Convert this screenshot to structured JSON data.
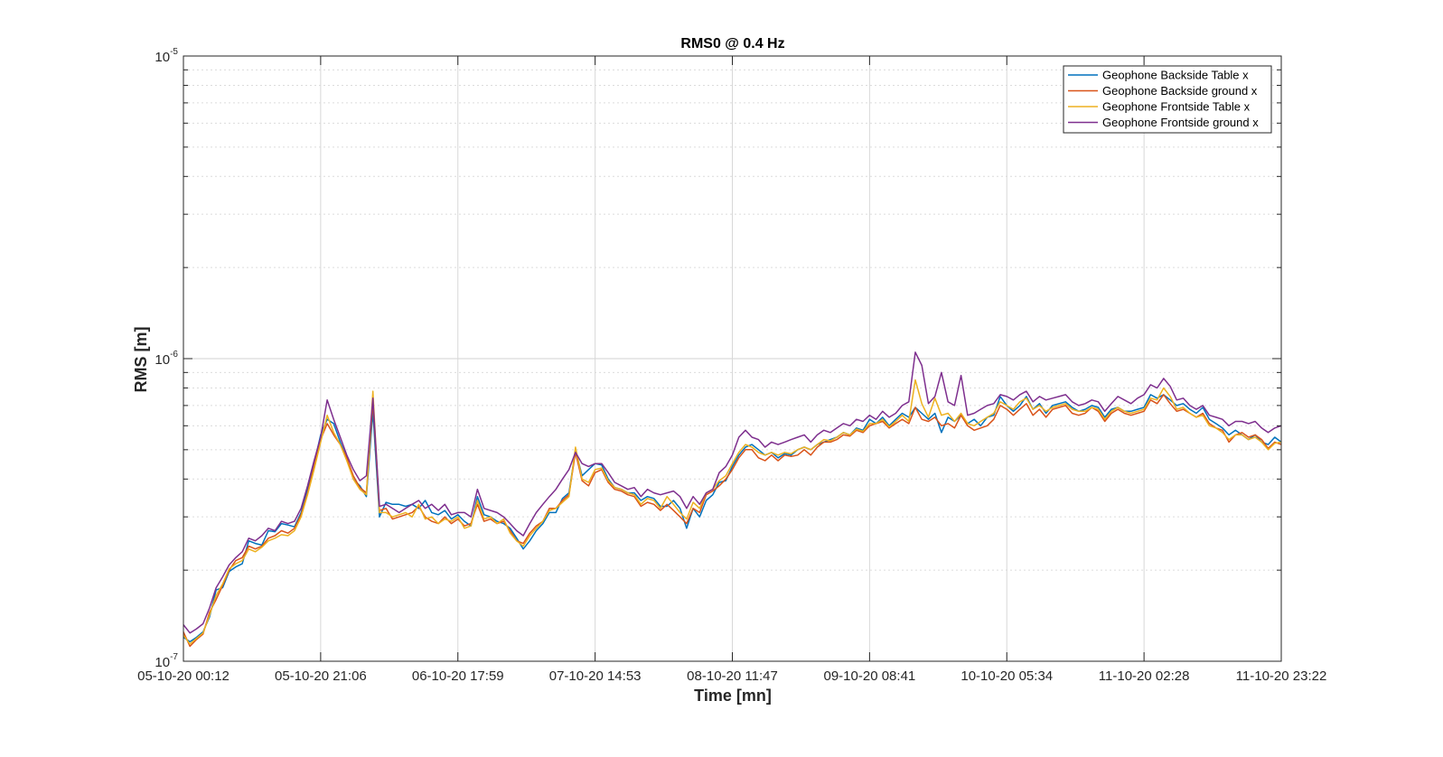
{
  "chart_data": {
    "type": "line",
    "title": "RMS0 @ 0.4 Hz",
    "xlabel": "Time [mn]",
    "ylabel": "RMS [m]",
    "yscale": "log",
    "ylim": [
      1e-07,
      1e-05
    ],
    "yticks": [
      {
        "value": 1e-07,
        "base": "10",
        "exp": "-7"
      },
      {
        "value": 1e-06,
        "base": "10",
        "exp": "-6"
      },
      {
        "value": 1e-05,
        "base": "10",
        "exp": "-5"
      }
    ],
    "xlim": [
      "05-10-20 00:12",
      "11-10-20 23:22"
    ],
    "xticks": [
      "05-10-20 00:12",
      "05-10-20 21:06",
      "06-10-20 17:59",
      "07-10-20 14:53",
      "08-10-20 11:47",
      "09-10-20 08:41",
      "10-10-20 05:34",
      "11-10-20 02:28",
      "11-10-20 23:22"
    ],
    "grid": true,
    "legend_position": "top-right",
    "x_start": "05-10-20 00:12",
    "x_step_hours": 1,
    "series": [
      {
        "name": "Geophone Backside Table x",
        "color": "#0072BD",
        "values": [
          1.2e-07,
          1.16e-07,
          1.2e-07,
          1.25e-07,
          1.4e-07,
          1.72e-07,
          1.75e-07,
          1.98e-07,
          2.05e-07,
          2.1e-07,
          2.5e-07,
          2.45e-07,
          2.42e-07,
          2.7e-07,
          2.68e-07,
          2.85e-07,
          2.82e-07,
          2.78e-07,
          3.1e-07,
          3.7e-07,
          4.5e-07,
          5.6e-07,
          6.3e-07,
          6.1e-07,
          5.3e-07,
          4.7e-07,
          4e-07,
          3.8e-07,
          3.5e-07,
          6.7e-07,
          3e-07,
          3.35e-07,
          3.3e-07,
          3.3e-07,
          3.25e-07,
          3.3e-07,
          3.2e-07,
          3.4e-07,
          3.1e-07,
          3.05e-07,
          3.15e-07,
          2.95e-07,
          3.05e-07,
          2.9e-07,
          2.8e-07,
          3.5e-07,
          3.05e-07,
          3e-07,
          2.9e-07,
          2.85e-07,
          2.75e-07,
          2.55e-07,
          2.35e-07,
          2.5e-07,
          2.7e-07,
          2.85e-07,
          3.1e-07,
          3.1e-07,
          3.45e-07,
          3.6e-07,
          5e-07,
          4.1e-07,
          4.3e-07,
          4.5e-07,
          4.45e-07,
          4e-07,
          3.75e-07,
          3.7e-07,
          3.6e-07,
          3.6e-07,
          3.4e-07,
          3.5e-07,
          3.45e-07,
          3.25e-07,
          3.25e-07,
          3.4e-07,
          3.2e-07,
          2.75e-07,
          3.2e-07,
          3e-07,
          3.4e-07,
          3.55e-07,
          3.9e-07,
          3.95e-07,
          4.4e-07,
          4.8e-07,
          5.1e-07,
          5.2e-07,
          5e-07,
          4.8e-07,
          4.9e-07,
          4.7e-07,
          4.85e-07,
          4.8e-07,
          5e-07,
          5.1e-07,
          5e-07,
          5.2e-07,
          5.3e-07,
          5.4e-07,
          5.5e-07,
          5.7e-07,
          5.6e-07,
          5.9e-07,
          5.8e-07,
          6.3e-07,
          6.1e-07,
          6.4e-07,
          6e-07,
          6.3e-07,
          6.6e-07,
          6.4e-07,
          6.9e-07,
          6.6e-07,
          6.3e-07,
          6.6e-07,
          5.7e-07,
          6.4e-07,
          6.2e-07,
          6.5e-07,
          6.1e-07,
          6.3e-07,
          6e-07,
          6.4e-07,
          6.5e-07,
          7.5e-07,
          7e-07,
          6.7e-07,
          7e-07,
          7.5e-07,
          6.8e-07,
          7.1e-07,
          6.6e-07,
          7e-07,
          7.1e-07,
          7.2e-07,
          6.9e-07,
          6.7e-07,
          6.8e-07,
          7e-07,
          6.9e-07,
          6.4e-07,
          6.8e-07,
          6.9e-07,
          6.7e-07,
          6.7e-07,
          6.8e-07,
          6.9e-07,
          7.6e-07,
          7.4e-07,
          7.6e-07,
          7.3e-07,
          7e-07,
          7.1e-07,
          6.8e-07,
          6.6e-07,
          6.9e-07,
          6.3e-07,
          6.1e-07,
          5.9e-07,
          5.6e-07,
          5.8e-07,
          5.6e-07,
          5.4e-07,
          5.6e-07,
          5.3e-07,
          5.2e-07,
          5.5e-07,
          5.3e-07
        ]
      },
      {
        "name": "Geophone Backside ground x",
        "color": "#D95319",
        "values": [
          1.25e-07,
          1.12e-07,
          1.18e-07,
          1.23e-07,
          1.45e-07,
          1.6e-07,
          1.78e-07,
          2e-07,
          2.15e-07,
          2.2e-07,
          2.4e-07,
          2.35e-07,
          2.4e-07,
          2.55e-07,
          2.6e-07,
          2.7e-07,
          2.65e-07,
          2.75e-07,
          3.05e-07,
          3.6e-07,
          4.4e-07,
          5.4e-07,
          6.1e-07,
          5.6e-07,
          5.2e-07,
          4.7e-07,
          4.1e-07,
          3.75e-07,
          3.6e-07,
          7.2e-07,
          3.15e-07,
          3.2e-07,
          2.95e-07,
          3e-07,
          3.05e-07,
          3.1e-07,
          3.25e-07,
          3e-07,
          2.9e-07,
          2.85e-07,
          3e-07,
          2.85e-07,
          2.95e-07,
          2.8e-07,
          2.85e-07,
          3.3e-07,
          2.9e-07,
          2.95e-07,
          2.85e-07,
          2.9e-07,
          2.7e-07,
          2.5e-07,
          2.45e-07,
          2.65e-07,
          2.8e-07,
          2.9e-07,
          3.2e-07,
          3.2e-07,
          3.4e-07,
          3.55e-07,
          4.9e-07,
          3.95e-07,
          3.8e-07,
          4.2e-07,
          4.3e-07,
          3.9e-07,
          3.7e-07,
          3.65e-07,
          3.55e-07,
          3.5e-07,
          3.25e-07,
          3.35e-07,
          3.3e-07,
          3.15e-07,
          3.3e-07,
          3.15e-07,
          3e-07,
          2.85e-07,
          3.2e-07,
          3.1e-07,
          3.55e-07,
          3.65e-07,
          3.8e-07,
          4e-07,
          4.3e-07,
          4.7e-07,
          5e-07,
          5e-07,
          4.7e-07,
          4.6e-07,
          4.8e-07,
          4.6e-07,
          4.8e-07,
          4.75e-07,
          4.8e-07,
          5e-07,
          4.8e-07,
          5.1e-07,
          5.3e-07,
          5.3e-07,
          5.4e-07,
          5.6e-07,
          5.55e-07,
          5.8e-07,
          5.7e-07,
          6e-07,
          6.1e-07,
          6.2e-07,
          5.9e-07,
          6.1e-07,
          6.3e-07,
          6.1e-07,
          6.9e-07,
          6.3e-07,
          6.2e-07,
          6.4e-07,
          6e-07,
          6.1e-07,
          5.9e-07,
          6.5e-07,
          6e-07,
          5.8e-07,
          5.9e-07,
          6e-07,
          6.3e-07,
          7e-07,
          6.8e-07,
          6.5e-07,
          6.8e-07,
          7.1e-07,
          6.5e-07,
          6.8e-07,
          6.4e-07,
          6.8e-07,
          6.9e-07,
          7e-07,
          6.6e-07,
          6.5e-07,
          6.6e-07,
          6.9e-07,
          6.7e-07,
          6.2e-07,
          6.6e-07,
          6.8e-07,
          6.6e-07,
          6.5e-07,
          6.6e-07,
          6.7e-07,
          7.3e-07,
          7.1e-07,
          7.6e-07,
          7.1e-07,
          6.7e-07,
          6.8e-07,
          6.6e-07,
          6.4e-07,
          6.6e-07,
          6.1e-07,
          5.9e-07,
          5.8e-07,
          5.3e-07,
          5.6e-07,
          5.7e-07,
          5.5e-07,
          5.6e-07,
          5.4e-07,
          5.05e-07,
          5.3e-07,
          5.2e-07
        ]
      },
      {
        "name": "Geophone Frontside Table x",
        "color": "#EDB120",
        "values": [
          1.22e-07,
          1.14e-07,
          1.19e-07,
          1.24e-07,
          1.42e-07,
          1.65e-07,
          1.8e-07,
          2.02e-07,
          2.1e-07,
          2.15e-07,
          2.35e-07,
          2.3e-07,
          2.38e-07,
          2.5e-07,
          2.55e-07,
          2.62e-07,
          2.6e-07,
          2.7e-07,
          3e-07,
          3.55e-07,
          4.3e-07,
          5.3e-07,
          6.5e-07,
          5.7e-07,
          5.2e-07,
          4.6e-07,
          4e-07,
          3.7e-07,
          3.55e-07,
          7.8e-07,
          3.1e-07,
          3.1e-07,
          3e-07,
          3.05e-07,
          3.1e-07,
          3e-07,
          3.3e-07,
          2.95e-07,
          3e-07,
          2.85e-07,
          2.95e-07,
          2.9e-07,
          3e-07,
          2.75e-07,
          2.8e-07,
          3.4e-07,
          2.95e-07,
          3e-07,
          2.85e-07,
          2.95e-07,
          2.65e-07,
          2.5e-07,
          2.4e-07,
          2.6e-07,
          2.75e-07,
          2.9e-07,
          3.15e-07,
          3.2e-07,
          3.35e-07,
          3.5e-07,
          5.1e-07,
          4e-07,
          3.9e-07,
          4.3e-07,
          4.35e-07,
          3.95e-07,
          3.75e-07,
          3.7e-07,
          3.6e-07,
          3.55e-07,
          3.3e-07,
          3.45e-07,
          3.4e-07,
          3.2e-07,
          3.5e-07,
          3.3e-07,
          3.1e-07,
          2.95e-07,
          3.35e-07,
          3.2e-07,
          3.6e-07,
          3.7e-07,
          3.95e-07,
          4.1e-07,
          4.5e-07,
          4.9e-07,
          5.2e-07,
          5.1e-07,
          4.9e-07,
          4.8e-07,
          4.9e-07,
          4.8e-07,
          4.9e-07,
          4.85e-07,
          5e-07,
          5.1e-07,
          5e-07,
          5.2e-07,
          5.4e-07,
          5.35e-07,
          5.5e-07,
          5.7e-07,
          5.6e-07,
          5.85e-07,
          5.75e-07,
          6.1e-07,
          6.1e-07,
          6.3e-07,
          5.95e-07,
          6.2e-07,
          6.5e-07,
          6.2e-07,
          8.5e-07,
          7.1e-07,
          6.4e-07,
          7.4e-07,
          6.5e-07,
          6.6e-07,
          6.2e-07,
          6.6e-07,
          6.1e-07,
          6e-07,
          6.2e-07,
          6.4e-07,
          6.6e-07,
          7.2e-07,
          7e-07,
          6.8e-07,
          7.2e-07,
          7.4e-07,
          6.8e-07,
          7e-07,
          6.7e-07,
          6.9e-07,
          7e-07,
          7.1e-07,
          6.8e-07,
          6.7e-07,
          6.7e-07,
          6.9e-07,
          6.8e-07,
          6.3e-07,
          6.7e-07,
          6.9e-07,
          6.7e-07,
          6.6e-07,
          6.7e-07,
          6.8e-07,
          7.4e-07,
          7.3e-07,
          8e-07,
          7.5e-07,
          6.8e-07,
          6.9e-07,
          6.6e-07,
          6.4e-07,
          6.5e-07,
          6e-07,
          5.9e-07,
          5.7e-07,
          5.4e-07,
          5.6e-07,
          5.6e-07,
          5.4e-07,
          5.5e-07,
          5.3e-07,
          5e-07,
          5.25e-07,
          5.3e-07
        ]
      },
      {
        "name": "Geophone Frontside ground x",
        "color": "#7E2F8E",
        "values": [
          1.32e-07,
          1.24e-07,
          1.28e-07,
          1.33e-07,
          1.5e-07,
          1.75e-07,
          1.9e-07,
          2.08e-07,
          2.2e-07,
          2.3e-07,
          2.55e-07,
          2.5e-07,
          2.6e-07,
          2.75e-07,
          2.7e-07,
          2.9e-07,
          2.85e-07,
          2.9e-07,
          3.2e-07,
          3.8e-07,
          4.6e-07,
          5.5e-07,
          7.3e-07,
          6.3e-07,
          5.5e-07,
          4.8e-07,
          4.3e-07,
          3.95e-07,
          4.1e-07,
          7.4e-07,
          3.25e-07,
          3.3e-07,
          3.2e-07,
          3.1e-07,
          3.2e-07,
          3.3e-07,
          3.4e-07,
          3.2e-07,
          3.3e-07,
          3.15e-07,
          3.3e-07,
          3.05e-07,
          3.1e-07,
          3.1e-07,
          3e-07,
          3.7e-07,
          3.2e-07,
          3.15e-07,
          3.1e-07,
          3e-07,
          2.85e-07,
          2.7e-07,
          2.6e-07,
          2.85e-07,
          3.1e-07,
          3.3e-07,
          3.5e-07,
          3.7e-07,
          4e-07,
          4.3e-07,
          4.9e-07,
          4.5e-07,
          4.4e-07,
          4.5e-07,
          4.5e-07,
          4.2e-07,
          3.9e-07,
          3.8e-07,
          3.7e-07,
          3.75e-07,
          3.5e-07,
          3.7e-07,
          3.6e-07,
          3.55e-07,
          3.6e-07,
          3.65e-07,
          3.5e-07,
          3.2e-07,
          3.5e-07,
          3.3e-07,
          3.6e-07,
          3.7e-07,
          4.2e-07,
          4.4e-07,
          4.8e-07,
          5.5e-07,
          5.8e-07,
          5.5e-07,
          5.4e-07,
          5.1e-07,
          5.3e-07,
          5.2e-07,
          5.3e-07,
          5.4e-07,
          5.5e-07,
          5.6e-07,
          5.3e-07,
          5.6e-07,
          5.8e-07,
          5.7e-07,
          5.9e-07,
          6.1e-07,
          6e-07,
          6.3e-07,
          6.2e-07,
          6.5e-07,
          6.3e-07,
          6.7e-07,
          6.4e-07,
          6.6e-07,
          7e-07,
          7.2e-07,
          1.05e-06,
          9.5e-07,
          7.1e-07,
          7.5e-07,
          9e-07,
          7.2e-07,
          7e-07,
          8.8e-07,
          6.5e-07,
          6.6e-07,
          6.8e-07,
          7e-07,
          7.1e-07,
          7.6e-07,
          7.5e-07,
          7.3e-07,
          7.6e-07,
          7.8e-07,
          7.2e-07,
          7.5e-07,
          7.3e-07,
          7.4e-07,
          7.5e-07,
          7.6e-07,
          7.2e-07,
          7e-07,
          7.1e-07,
          7.3e-07,
          7.2e-07,
          6.7e-07,
          7.1e-07,
          7.5e-07,
          7.3e-07,
          7.1e-07,
          7.4e-07,
          7.6e-07,
          8.2e-07,
          8e-07,
          8.6e-07,
          8.1e-07,
          7.3e-07,
          7.4e-07,
          7e-07,
          6.8e-07,
          7e-07,
          6.5e-07,
          6.4e-07,
          6.3e-07,
          6e-07,
          6.2e-07,
          6.2e-07,
          6.1e-07,
          6.2e-07,
          5.9e-07,
          5.7e-07,
          5.9e-07,
          6e-07
        ]
      }
    ]
  }
}
